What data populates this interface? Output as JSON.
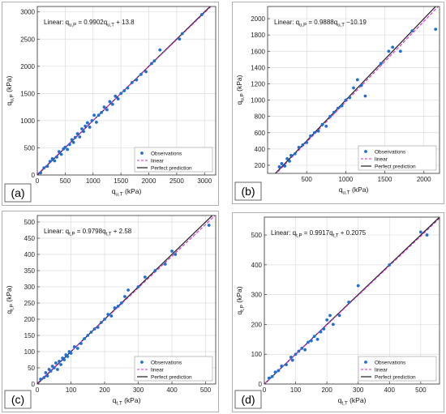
{
  "colors": {
    "observations": "#1f6fd1",
    "linear": "#d62ccf",
    "perfect": "#1a1a1a",
    "grid": "#dcdcdc",
    "axis": "#333333",
    "panel_frame": "#b0b0b0"
  },
  "chart_data": [
    {
      "type": "scatter",
      "panel_label": "(a)",
      "annotation": "Linear: q_{u,P} = 0.9902q_{u,T} + 13.8",
      "xlabel": "q_{u,T} (kPa)",
      "ylabel": "q_{u,P} (kPa)",
      "xlim": [
        0,
        3200
      ],
      "ylim": [
        0,
        3100
      ],
      "xticks": [
        0,
        500,
        1000,
        1500,
        2000,
        2500,
        3000
      ],
      "yticks": [
        0,
        500,
        1000,
        1500,
        2000,
        2500,
        3000
      ],
      "grid": true,
      "legend_position": "bottom-right",
      "legend": [
        "Observations",
        "linear",
        "Perfect prediction"
      ],
      "fit": {
        "slope": 0.9902,
        "intercept": 13.8
      },
      "series": [
        {
          "name": "Observations",
          "x": [
            60,
            120,
            180,
            230,
            270,
            310,
            350,
            390,
            430,
            470,
            500,
            540,
            580,
            620,
            650,
            680,
            720,
            760,
            800,
            830,
            860,
            900,
            940,
            980,
            1020,
            1060,
            1100,
            1150,
            1200,
            1250,
            1300,
            1350,
            1400,
            1450,
            1500,
            1560,
            1620,
            1700,
            1780,
            1860,
            1950,
            2050,
            2100,
            2200,
            2550,
            2600,
            2950
          ],
          "y": [
            40,
            130,
            160,
            250,
            300,
            260,
            330,
            430,
            380,
            480,
            510,
            470,
            560,
            650,
            600,
            690,
            760,
            700,
            850,
            800,
            900,
            960,
            880,
            1000,
            1100,
            970,
            1100,
            1150,
            1250,
            1200,
            1350,
            1300,
            1450,
            1400,
            1500,
            1550,
            1600,
            1700,
            1750,
            1850,
            1900,
            2050,
            2100,
            2300,
            2500,
            2600,
            2950
          ]
        }
      ]
    },
    {
      "type": "scatter",
      "panel_label": "(b)",
      "annotation": "Linear: q_{u,P} = 0.9888q_{u,T} −10.19",
      "xlabel": "q_{u,T} (kPa)",
      "ylabel": "q_{u,P} (kPa)",
      "xlim": [
        0,
        2200
      ],
      "ylim": [
        100,
        2150
      ],
      "xticks": [
        500,
        1000,
        1500,
        2000
      ],
      "yticks": [
        200,
        400,
        600,
        800,
        1000,
        1200,
        1400,
        1600,
        1800,
        2000
      ],
      "grid": true,
      "legend_position": "bottom-right",
      "legend": [
        "Observations",
        "linear",
        "Perfect prediction"
      ],
      "fit": {
        "slope": 0.9888,
        "intercept": -10.19
      },
      "series": [
        {
          "name": "Observations",
          "x": [
            150,
            180,
            220,
            250,
            280,
            300,
            350,
            400,
            450,
            500,
            550,
            600,
            650,
            700,
            750,
            800,
            850,
            900,
            950,
            1000,
            1050,
            1100,
            1150,
            1200,
            1250,
            1450,
            1550,
            1600,
            1700,
            1850,
            2150
          ],
          "y": [
            180,
            220,
            190,
            280,
            250,
            320,
            340,
            420,
            450,
            480,
            560,
            600,
            620,
            700,
            680,
            800,
            850,
            900,
            930,
            1000,
            1030,
            1150,
            1250,
            1180,
            1050,
            1450,
            1600,
            1650,
            1600,
            1850,
            1870
          ]
        }
      ]
    },
    {
      "type": "scatter",
      "panel_label": "(c)",
      "annotation": "Linear: q_{t,P} = 0.9798q_{t,T} + 2.58",
      "xlabel": "q_{t,T} (kPa)",
      "ylabel": "q_{t,P} (kPa)",
      "xlim": [
        0,
        530
      ],
      "ylim": [
        0,
        520
      ],
      "xticks": [
        0,
        100,
        200,
        300,
        400,
        500
      ],
      "yticks": [
        0,
        50,
        100,
        150,
        200,
        250,
        300,
        350,
        400,
        450,
        500
      ],
      "grid": true,
      "legend_position": "bottom-right",
      "legend": [
        "Observations",
        "linear",
        "Perfect prediction"
      ],
      "fit": {
        "slope": 0.9798,
        "intercept": 2.58
      },
      "series": [
        {
          "name": "Observations",
          "x": [
            10,
            20,
            25,
            30,
            35,
            40,
            45,
            50,
            55,
            60,
            65,
            70,
            75,
            80,
            85,
            90,
            95,
            100,
            110,
            120,
            130,
            140,
            150,
            160,
            170,
            180,
            190,
            200,
            210,
            220,
            230,
            240,
            250,
            260,
            270,
            300,
            320,
            350,
            380,
            400,
            410,
            510
          ],
          "y": [
            15,
            20,
            35,
            25,
            45,
            40,
            55,
            50,
            65,
            45,
            70,
            60,
            80,
            75,
            90,
            85,
            100,
            95,
            115,
            110,
            125,
            140,
            150,
            160,
            170,
            175,
            190,
            200,
            215,
            210,
            235,
            240,
            250,
            270,
            290,
            300,
            330,
            350,
            370,
            410,
            400,
            490
          ]
        }
      ]
    },
    {
      "type": "scatter",
      "panel_label": "(d)",
      "annotation": "Linear: q_{t,P} = 0.9917q_{t,T} + 0.2075",
      "xlabel": "q_{t,T} (kPa)",
      "ylabel": "q_{t,P} (kPa)",
      "xlim": [
        0,
        560
      ],
      "ylim": [
        0,
        560
      ],
      "xticks": [
        0,
        100,
        200,
        300,
        400,
        500
      ],
      "yticks": [
        0,
        100,
        200,
        300,
        400,
        500
      ],
      "grid": true,
      "legend_position": "bottom-right",
      "legend": [
        "Observations",
        "linear",
        "Perfect prediction"
      ],
      "fit": {
        "slope": 0.9917,
        "intercept": 0.2075
      },
      "series": [
        {
          "name": "Observations",
          "x": [
            15,
            25,
            35,
            45,
            55,
            70,
            85,
            90,
            100,
            110,
            120,
            130,
            140,
            150,
            160,
            170,
            180,
            190,
            200,
            210,
            220,
            240,
            270,
            300,
            400,
            500,
            520
          ],
          "y": [
            20,
            25,
            40,
            45,
            60,
            65,
            90,
            80,
            100,
            110,
            120,
            115,
            140,
            145,
            160,
            150,
            175,
            185,
            215,
            230,
            200,
            230,
            275,
            330,
            400,
            510,
            500
          ]
        }
      ]
    }
  ]
}
